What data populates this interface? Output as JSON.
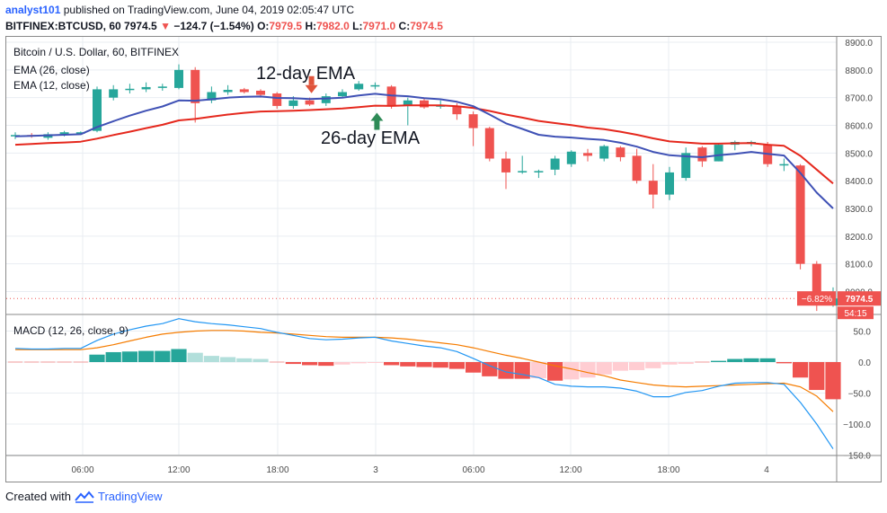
{
  "header": {
    "author": "analyst101",
    "published": "published on TradingView.com, June 04, 2019 02:05:47 UTC",
    "symbol": "BITFINEX:BTCUSD, 60",
    "last": "7974.5",
    "change": "−124.7 (−1.54%)",
    "o_label": "O:",
    "o_value": "7979.5",
    "h_label": "H:",
    "h_value": "7982.0",
    "l_label": "L:",
    "l_value": "7971.0",
    "c_label": "C:",
    "c_value": "7974.5"
  },
  "main_pane": {
    "title": "Bitcoin / U.S. Dollar, 60, BITFINEX",
    "indicator1": "EMA (26, close)",
    "indicator2": "EMA (12, close)",
    "annotation_12": "12-day EMA",
    "annotation_26": "26-day EMA",
    "price_badge": "7974.5",
    "pct_badge": "−6.82%",
    "countdown_badge": "54:15"
  },
  "macd_pane": {
    "title": "MACD (12, 26, close, 9)"
  },
  "credit": {
    "created_with": "Created with",
    "brand": "TradingView"
  },
  "colors": {
    "up": "#26a69a",
    "down": "#ef5350",
    "ema12": "#3f51b5",
    "ema26": "#e5281d",
    "macd": "#2196f3",
    "signal": "#f57c00",
    "hist_light_up": "#b2dfdb",
    "hist_light_down": "#ffcdd2"
  },
  "chart_data": [
    {
      "type": "candlestick",
      "title": "Bitcoin / U.S. Dollar, 60, BITFINEX",
      "x_tick_labels": [
        "06:00",
        "12:00",
        "18:00",
        "3",
        "06:00",
        "12:00",
        "18:00",
        "4"
      ],
      "y_tick_labels": [
        "8900.0",
        "8800.0",
        "8700.0",
        "8600.0",
        "8500.0",
        "8400.0",
        "8300.0",
        "8200.0",
        "8100.0",
        "8000.0"
      ],
      "ylim": [
        7930,
        8910
      ],
      "candles": [
        {
          "o": 8560,
          "h": 8575,
          "l": 8550,
          "c": 8565
        },
        {
          "o": 8565,
          "h": 8572,
          "l": 8555,
          "c": 8560
        },
        {
          "o": 8555,
          "h": 8575,
          "l": 8548,
          "c": 8568
        },
        {
          "o": 8568,
          "h": 8580,
          "l": 8560,
          "c": 8575
        },
        {
          "o": 8570,
          "h": 8578,
          "l": 8565,
          "c": 8575
        },
        {
          "o": 8580,
          "h": 8740,
          "l": 8575,
          "c": 8730
        },
        {
          "o": 8700,
          "h": 8745,
          "l": 8690,
          "c": 8730
        },
        {
          "o": 8730,
          "h": 8750,
          "l": 8715,
          "c": 8732
        },
        {
          "o": 8730,
          "h": 8755,
          "l": 8720,
          "c": 8738
        },
        {
          "o": 8735,
          "h": 8750,
          "l": 8725,
          "c": 8740
        },
        {
          "o": 8735,
          "h": 8820,
          "l": 8730,
          "c": 8800
        },
        {
          "o": 8800,
          "h": 8810,
          "l": 8610,
          "c": 8680
        },
        {
          "o": 8690,
          "h": 8740,
          "l": 8680,
          "c": 8720
        },
        {
          "o": 8720,
          "h": 8745,
          "l": 8710,
          "c": 8728
        },
        {
          "o": 8730,
          "h": 8735,
          "l": 8715,
          "c": 8720
        },
        {
          "o": 8725,
          "h": 8730,
          "l": 8700,
          "c": 8710
        },
        {
          "o": 8715,
          "h": 8720,
          "l": 8660,
          "c": 8670
        },
        {
          "o": 8670,
          "h": 8705,
          "l": 8660,
          "c": 8690
        },
        {
          "o": 8690,
          "h": 8700,
          "l": 8670,
          "c": 8675
        },
        {
          "o": 8680,
          "h": 8715,
          "l": 8670,
          "c": 8705
        },
        {
          "o": 8705,
          "h": 8730,
          "l": 8700,
          "c": 8720
        },
        {
          "o": 8730,
          "h": 8760,
          "l": 8725,
          "c": 8750
        },
        {
          "o": 8740,
          "h": 8755,
          "l": 8730,
          "c": 8745
        },
        {
          "o": 8740,
          "h": 8745,
          "l": 8660,
          "c": 8670
        },
        {
          "o": 8670,
          "h": 8700,
          "l": 8600,
          "c": 8690
        },
        {
          "o": 8690,
          "h": 8700,
          "l": 8660,
          "c": 8665
        },
        {
          "o": 8670,
          "h": 8690,
          "l": 8660,
          "c": 8672
        },
        {
          "o": 8670,
          "h": 8680,
          "l": 8620,
          "c": 8640
        },
        {
          "o": 8640,
          "h": 8650,
          "l": 8525,
          "c": 8590
        },
        {
          "o": 8590,
          "h": 8595,
          "l": 8470,
          "c": 8480
        },
        {
          "o": 8480,
          "h": 8505,
          "l": 8370,
          "c": 8430
        },
        {
          "o": 8430,
          "h": 8490,
          "l": 8425,
          "c": 8435
        },
        {
          "o": 8430,
          "h": 8440,
          "l": 8410,
          "c": 8435
        },
        {
          "o": 8440,
          "h": 8490,
          "l": 8420,
          "c": 8480
        },
        {
          "o": 8460,
          "h": 8510,
          "l": 8450,
          "c": 8505
        },
        {
          "o": 8500,
          "h": 8515,
          "l": 8470,
          "c": 8490
        },
        {
          "o": 8480,
          "h": 8530,
          "l": 8470,
          "c": 8525
        },
        {
          "o": 8520,
          "h": 8525,
          "l": 8470,
          "c": 8485
        },
        {
          "o": 8490,
          "h": 8515,
          "l": 8390,
          "c": 8400
        },
        {
          "o": 8400,
          "h": 8460,
          "l": 8300,
          "c": 8350
        },
        {
          "o": 8350,
          "h": 8450,
          "l": 8330,
          "c": 8430
        },
        {
          "o": 8410,
          "h": 8520,
          "l": 8400,
          "c": 8500
        },
        {
          "o": 8520,
          "h": 8525,
          "l": 8450,
          "c": 8470
        },
        {
          "o": 8470,
          "h": 8535,
          "l": 8470,
          "c": 8530
        },
        {
          "o": 8530,
          "h": 8545,
          "l": 8510,
          "c": 8540
        },
        {
          "o": 8535,
          "h": 8545,
          "l": 8525,
          "c": 8540
        },
        {
          "o": 8530,
          "h": 8540,
          "l": 8450,
          "c": 8460
        },
        {
          "o": 8455,
          "h": 8480,
          "l": 8435,
          "c": 8460
        },
        {
          "o": 8455,
          "h": 8460,
          "l": 8080,
          "c": 8100
        },
        {
          "o": 8100,
          "h": 8110,
          "l": 7930,
          "c": 7950
        },
        {
          "o": 7950,
          "h": 8015,
          "l": 7945,
          "c": 7975
        }
      ],
      "series": [
        {
          "name": "EMA (12, close)",
          "values": [
            8560,
            8562,
            8564,
            8566,
            8568,
            8594,
            8615,
            8635,
            8653,
            8668,
            8690,
            8689,
            8694,
            8700,
            8703,
            8704,
            8699,
            8698,
            8695,
            8697,
            8700,
            8708,
            8714,
            8708,
            8705,
            8698,
            8694,
            8685,
            8669,
            8639,
            8607,
            8587,
            8566,
            8559,
            8556,
            8551,
            8547,
            8537,
            8523,
            8504,
            8492,
            8488,
            8485,
            8492,
            8497,
            8504,
            8497,
            8491,
            8428,
            8357,
            8300
          ]
        },
        {
          "name": "EMA (26, close)",
          "values": [
            8530,
            8533,
            8536,
            8538,
            8541,
            8552,
            8565,
            8577,
            8590,
            8602,
            8618,
            8623,
            8631,
            8639,
            8645,
            8650,
            8651,
            8653,
            8655,
            8658,
            8661,
            8666,
            8671,
            8670,
            8672,
            8672,
            8672,
            8669,
            8663,
            8652,
            8639,
            8628,
            8616,
            8608,
            8601,
            8592,
            8586,
            8577,
            8566,
            8553,
            8542,
            8538,
            8534,
            8534,
            8535,
            8536,
            8530,
            8526,
            8490,
            8440,
            8390
          ]
        }
      ]
    },
    {
      "type": "macd",
      "title": "MACD (12, 26, close, 9)",
      "y_tick_labels": [
        "50.0",
        "0.0",
        "−50.0",
        "−100.0",
        "−150.0"
      ],
      "ylim": [
        -150,
        70
      ],
      "series": [
        {
          "name": "MACD",
          "values": [
            22,
            21,
            21,
            22,
            22,
            35,
            45,
            52,
            58,
            62,
            70,
            65,
            62,
            60,
            57,
            54,
            48,
            43,
            38,
            36,
            37,
            39,
            40,
            34,
            30,
            26,
            23,
            17,
            6,
            -6,
            -16,
            -20,
            -25,
            -36,
            -39,
            -40,
            -40,
            -42,
            -47,
            -56,
            -56,
            -49,
            -46,
            -39,
            -34,
            -33,
            -33,
            -36,
            -65,
            -100,
            -140
          ]
        },
        {
          "name": "Signal",
          "values": [
            20,
            20,
            20,
            20,
            20,
            23,
            28,
            34,
            40,
            45,
            48,
            50,
            51,
            51,
            50,
            48,
            47,
            45,
            43,
            41,
            40,
            40,
            40,
            39,
            37,
            34,
            31,
            28,
            23,
            17,
            11,
            6,
            0,
            -6,
            -11,
            -17,
            -22,
            -29,
            -33,
            -37,
            -39,
            -40,
            -39,
            -38,
            -37,
            -36,
            -35,
            -34,
            -40,
            -55,
            -80
          ]
        },
        {
          "name": "Histogram",
          "values": [
            0,
            0,
            0,
            0,
            0,
            12,
            16,
            17,
            18,
            18,
            21,
            15,
            10,
            8,
            6,
            5,
            0,
            -3,
            -5,
            -6,
            -4,
            -2,
            -1,
            -5,
            -7,
            -8,
            -9,
            -11,
            -17,
            -23,
            -27,
            -27,
            -26,
            -30,
            -28,
            -25,
            -20,
            -14,
            -13,
            -10,
            -4,
            -3,
            0,
            2,
            5,
            6,
            6,
            -2,
            -25,
            -45,
            -60
          ]
        }
      ]
    }
  ]
}
